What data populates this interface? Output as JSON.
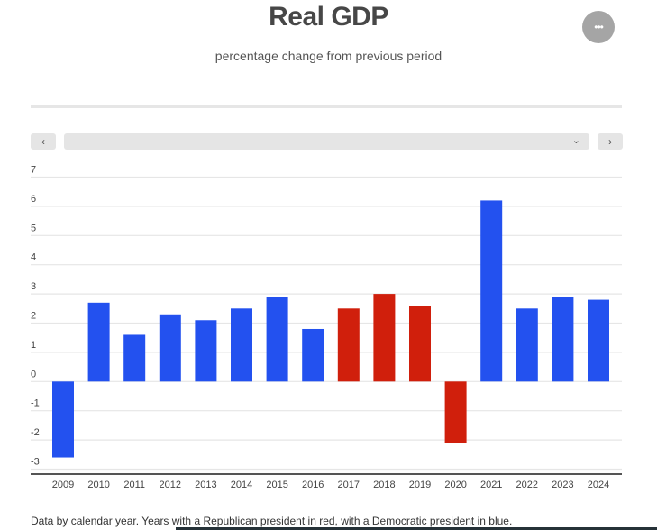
{
  "header": {
    "title": "Real GDP",
    "subtitle": "percentage change from previous period",
    "menu_icon": "more-horizontal-icon",
    "menu_label": "•••"
  },
  "controls": {
    "prev_label": "‹",
    "next_label": "›",
    "select_value": "",
    "select_chevron": "⌄"
  },
  "footnote": "Data by calendar year. Years with a Republican president in red, with a Democratic president in blue.",
  "colors": {
    "republican": "#d01f0c",
    "democratic": "#2351ef",
    "grid": "#e6e6e6",
    "axis": "#555555"
  },
  "chart_data": {
    "type": "bar",
    "title": "Real GDP",
    "subtitle": "percentage change from previous period",
    "categories": [
      "2009",
      "2010",
      "2011",
      "2012",
      "2013",
      "2014",
      "2015",
      "2016",
      "2017",
      "2018",
      "2019",
      "2020",
      "2021",
      "2022",
      "2023",
      "2024"
    ],
    "values": [
      -2.6,
      2.7,
      1.6,
      2.3,
      2.1,
      2.5,
      2.9,
      1.8,
      2.5,
      3.0,
      2.6,
      -2.1,
      6.2,
      2.5,
      2.9,
      2.8
    ],
    "party": [
      "D",
      "D",
      "D",
      "D",
      "D",
      "D",
      "D",
      "D",
      "R",
      "R",
      "R",
      "R",
      "D",
      "D",
      "D",
      "D"
    ],
    "yticks": [
      "-3",
      "-2",
      "-1",
      "0",
      "1",
      "2",
      "3",
      "4",
      "5",
      "6",
      "7"
    ],
    "ylim": [
      -3.2,
      7
    ],
    "grid": true,
    "xlabel": "",
    "ylabel": ""
  }
}
